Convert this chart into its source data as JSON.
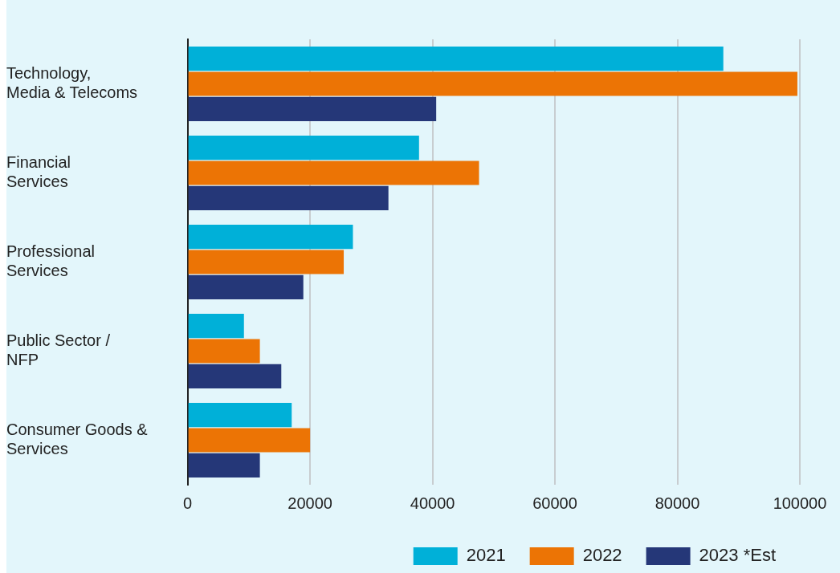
{
  "chart_data": {
    "type": "bar",
    "orientation": "horizontal",
    "categories": [
      "Technology, Media & Telecoms",
      "Financial Services",
      "Professional Services",
      "Public Sector / NFP",
      "Consumer Goods & Services"
    ],
    "series": [
      {
        "name": "2021",
        "color": "#00b0d8",
        "values": [
          87500,
          37800,
          27000,
          9200,
          17000
        ]
      },
      {
        "name": "2022",
        "color": "#ec7405",
        "values": [
          99600,
          47600,
          25500,
          11800,
          20000
        ]
      },
      {
        "name": "2023 *Est",
        "color": "#253778",
        "values": [
          40600,
          32800,
          18900,
          15300,
          11800
        ]
      }
    ],
    "xlim": [
      0,
      100000
    ],
    "xticks": [
      0,
      20000,
      40000,
      60000,
      80000,
      100000
    ],
    "grid": "x",
    "legend": "bottom right"
  }
}
